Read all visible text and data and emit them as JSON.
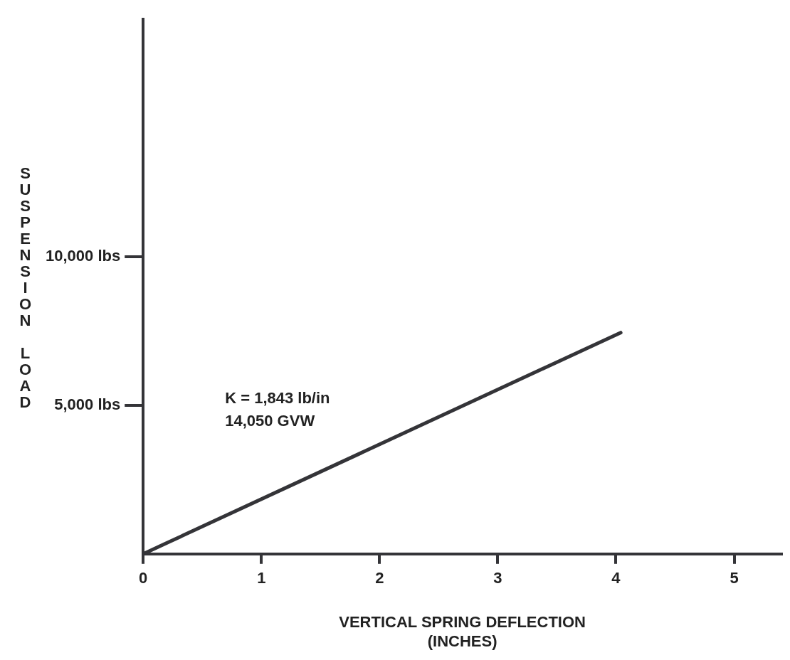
{
  "chart_data": {
    "type": "line",
    "xlabel": "VERTICAL SPRING DEFLECTION\n(INCHES)",
    "ylabel": "SUSPENSION LOAD",
    "x": [
      0,
      4.04
    ],
    "series": [
      {
        "color": "#343438",
        "values": [
          0,
          7450
        ]
      }
    ],
    "xlim": [
      0,
      5.4
    ],
    "xticks": [
      0,
      1,
      2,
      3,
      4,
      5
    ],
    "ylim": [
      0,
      18000
    ],
    "yticks": [
      {
        "value": 5000,
        "label": "5,000 lbs"
      },
      {
        "value": 10000,
        "label": "10,000 lbs"
      }
    ],
    "annotations": [
      "K = 1,843 lb/in",
      "14,050 GVW"
    ],
    "grid": false,
    "legend": false,
    "marker": "none",
    "line_style": "solid"
  }
}
